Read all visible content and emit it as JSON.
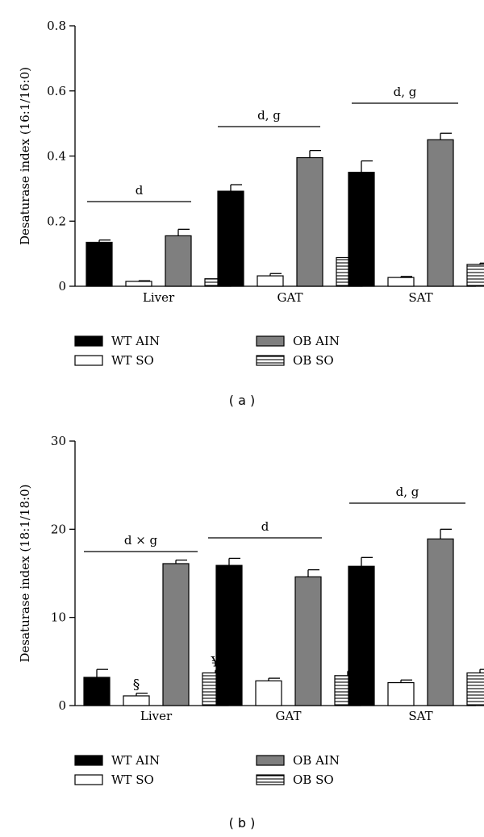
{
  "colors": {
    "WT AIN": "#000000",
    "WT SO": "#ffffff",
    "OB AIN": "#7f7f7f",
    "OB SO": "hatch"
  },
  "chart_data": [
    {
      "type": "bar",
      "panel_label": "( a )",
      "ylabel": "Desaturase index (16:1/16:0)",
      "ylim": [
        0,
        0.8
      ],
      "yticks": [
        {
          "value": 0,
          "label": "0"
        },
        {
          "value": 0.2,
          "label": "0.2"
        },
        {
          "value": 0.4,
          "label": "0.4"
        },
        {
          "value": 0.6,
          "label": "0.6"
        },
        {
          "value": 0.8,
          "label": "0.8"
        }
      ],
      "categories": [
        "Liver",
        "GAT",
        "SAT"
      ],
      "series": [
        {
          "name": "WT AIN",
          "values": [
            0.135,
            0.292,
            0.35
          ],
          "errors": [
            0.007,
            0.02,
            0.035
          ]
        },
        {
          "name": "WT SO",
          "values": [
            0.015,
            0.032,
            0.027
          ],
          "errors": [
            0.002,
            0.007,
            0.003
          ]
        },
        {
          "name": "OB AIN",
          "values": [
            0.155,
            0.395,
            0.45
          ],
          "errors": [
            0.02,
            0.022,
            0.02
          ]
        },
        {
          "name": "OB SO",
          "values": [
            0.023,
            0.088,
            0.067
          ],
          "errors": [
            0.002,
            0.006,
            0.004
          ]
        }
      ],
      "significance": [
        {
          "group": "Liver",
          "text": "d"
        },
        {
          "group": "GAT",
          "text": "d, g"
        },
        {
          "group": "SAT",
          "text": "d, g"
        }
      ],
      "bar_marks": [],
      "legend": {
        "placement": "bottom",
        "entries": [
          "WT AIN",
          "OB AIN",
          "WT SO",
          "OB SO"
        ]
      }
    },
    {
      "type": "bar",
      "panel_label": "( b )",
      "ylabel": "Desaturase index (18:1/18:0)",
      "ylim": [
        0,
        30
      ],
      "yticks": [
        {
          "value": 0,
          "label": "0"
        },
        {
          "value": 10,
          "label": "10"
        },
        {
          "value": 20,
          "label": "20"
        },
        {
          "value": 30,
          "label": "30"
        }
      ],
      "categories": [
        "Liver",
        "GAT",
        "SAT"
      ],
      "series": [
        {
          "name": "WT AIN",
          "values": [
            3.2,
            15.9,
            15.8
          ],
          "errors": [
            0.9,
            0.8,
            1.0
          ]
        },
        {
          "name": "WT SO",
          "values": [
            1.1,
            2.8,
            2.6
          ],
          "errors": [
            0.3,
            0.3,
            0.3
          ]
        },
        {
          "name": "OB AIN",
          "values": [
            16.1,
            14.6,
            18.9
          ],
          "errors": [
            0.4,
            0.8,
            1.1
          ]
        },
        {
          "name": "OB SO",
          "values": [
            3.7,
            3.4,
            3.7
          ],
          "errors": [
            0.3,
            0.5,
            0.4
          ]
        }
      ],
      "significance": [
        {
          "group": "Liver",
          "text": "d × g"
        },
        {
          "group": "GAT",
          "text": "d"
        },
        {
          "group": "SAT",
          "text": "d, g"
        }
      ],
      "bar_marks": [
        {
          "series": "WT SO",
          "category": "Liver",
          "text": "§"
        },
        {
          "series": "OB SO",
          "category": "Liver",
          "text": "¥"
        }
      ],
      "legend": {
        "placement": "bottom",
        "entries": [
          "WT AIN",
          "OB AIN",
          "WT SO",
          "OB SO"
        ]
      }
    }
  ]
}
